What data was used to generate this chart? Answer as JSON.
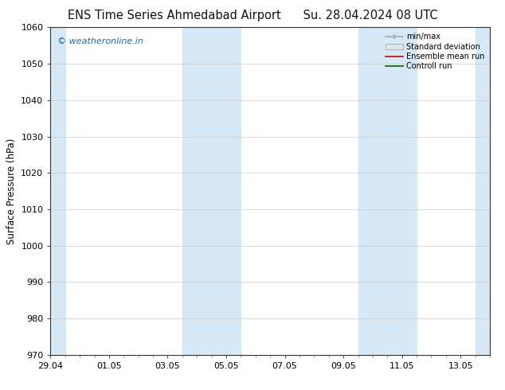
{
  "title_left": "ENS Time Series Ahmedabad Airport",
  "title_right": "Su. 28.04.2024 08 UTC",
  "ylabel": "Surface Pressure (hPa)",
  "ylim": [
    970,
    1060
  ],
  "yticks": [
    970,
    980,
    990,
    1000,
    1010,
    1020,
    1030,
    1040,
    1050,
    1060
  ],
  "xtick_labels": [
    "29.04",
    "01.05",
    "03.05",
    "05.05",
    "07.05",
    "09.05",
    "11.05",
    "13.05"
  ],
  "xtick_positions": [
    0,
    2,
    4,
    6,
    8,
    10,
    12,
    14
  ],
  "xlim": [
    0,
    15
  ],
  "shade_bands": [
    {
      "start": -0.1,
      "end": 0.5,
      "color": "#d6e8f5"
    },
    {
      "start": 4.5,
      "end": 6.5,
      "color": "#d6e8f5"
    },
    {
      "start": 10.5,
      "end": 12.5,
      "color": "#d6e8f5"
    },
    {
      "start": 14.5,
      "end": 15.1,
      "color": "#d6e8f5"
    }
  ],
  "watermark": "© weatheronline.in",
  "watermark_color": "#1a6bb5",
  "legend_items": [
    {
      "label": "min/max",
      "color": "#aaaaaa",
      "style": "line_with_caps"
    },
    {
      "label": "Standard deviation",
      "color": "#d0dcea",
      "style": "filled_rect"
    },
    {
      "label": "Ensemble mean run",
      "color": "#cc0000",
      "style": "line"
    },
    {
      "label": "Controll run",
      "color": "#006600",
      "style": "line"
    }
  ],
  "bg_color": "#ffffff",
  "plot_bg_color": "#ffffff",
  "grid_color": "#cccccc",
  "title_fontsize": 10.5,
  "tick_fontsize": 8,
  "ylabel_fontsize": 8.5
}
